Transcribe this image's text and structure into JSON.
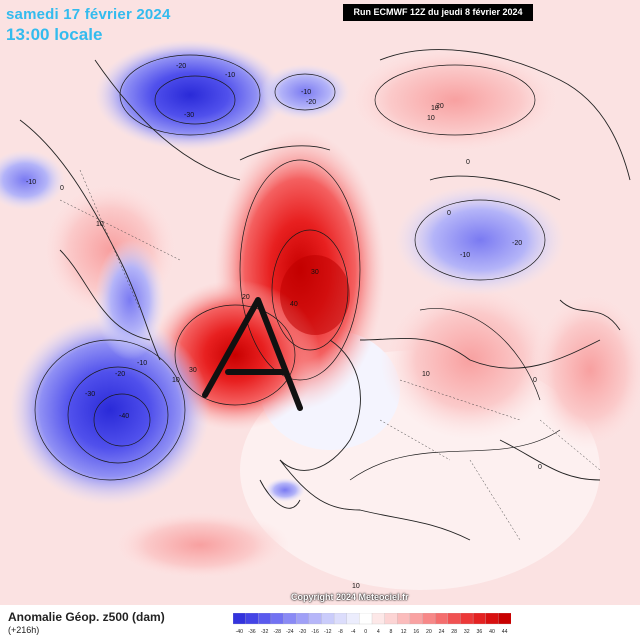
{
  "header": {
    "date": "samedi 17 février 2024",
    "time": "13:00 locale",
    "run": "Run ECMWF 12Z du jeudi 8 février 2024"
  },
  "footer": {
    "product": "Anomalie Géop. z500 (dam)",
    "step": "(+216h)",
    "copyright": "Copyright 2024 Meteociel.fr"
  },
  "legend": {
    "ticks": [
      "-40",
      "-36",
      "-32",
      "-28",
      "-24",
      "-20",
      "-16",
      "-12",
      "-8",
      "-4",
      "0",
      "4",
      "8",
      "12",
      "16",
      "20",
      "24",
      "28",
      "32",
      "36",
      "40",
      "44"
    ],
    "colors": [
      "#3333dd",
      "#4444e6",
      "#5a5aee",
      "#7272f2",
      "#8a8af5",
      "#a0a0f7",
      "#b6b6f9",
      "#caccfb",
      "#dcddfc",
      "#ecedfd",
      "#ffffff",
      "#fde8e8",
      "#fcd4d4",
      "#fbbcbc",
      "#f9a2a2",
      "#f78888",
      "#f46e6e",
      "#f05252",
      "#ec3838",
      "#e42222",
      "#d81010",
      "#c80000"
    ]
  },
  "overlay": {
    "letter": "A"
  },
  "contour_labels": [
    "-20",
    "-10",
    "-30",
    "-20",
    "-10",
    "0",
    "10",
    "-10",
    "0",
    "10",
    "20",
    "10",
    "0",
    "-10",
    "-20",
    "30",
    "20",
    "40",
    "-10",
    "-20",
    "-30",
    "-40",
    "30",
    "10",
    "10",
    "0",
    "0",
    "10"
  ],
  "colors": {
    "header_text": "#33bbee",
    "run_bg": "#000000"
  }
}
